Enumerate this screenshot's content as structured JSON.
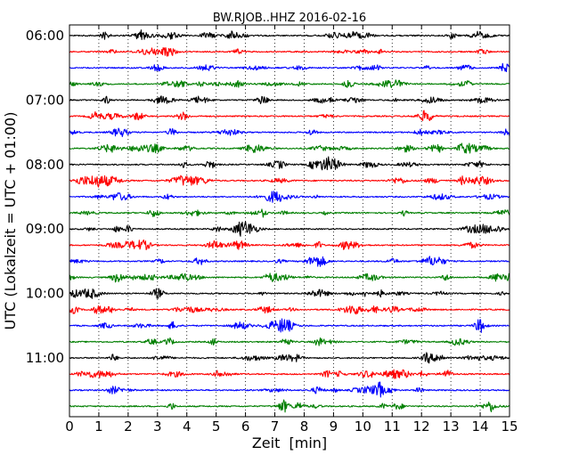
{
  "chart_data": {
    "type": "line",
    "title": "BW.RJOB..HHZ 2016-02-16",
    "xlabel": "Zeit  [min]",
    "ylabel": "UTC (Lokalzeit = UTC + 01:00)",
    "xlim": [
      0,
      15
    ],
    "x_ticks": [
      0,
      1,
      2,
      3,
      4,
      5,
      6,
      7,
      8,
      9,
      10,
      11,
      12,
      13,
      14,
      15
    ],
    "x_tick_labels": [
      "0",
      "1",
      "2",
      "3",
      "4",
      "5",
      "6",
      "7",
      "8",
      "9",
      "10",
      "11",
      "12",
      "13",
      "14",
      "15"
    ],
    "minutes_per_trace": 15,
    "trace_start_times": [
      "06:00",
      "06:15",
      "06:30",
      "06:45",
      "07:00",
      "07:15",
      "07:30",
      "07:45",
      "08:00",
      "08:15",
      "08:30",
      "08:45",
      "09:00",
      "09:15",
      "09:30",
      "09:45",
      "10:00",
      "10:15",
      "10:30",
      "10:45",
      "11:00",
      "11:15",
      "11:30",
      "11:45"
    ],
    "y_tick_labels": [
      {
        "label": "06:00",
        "trace_index": 0
      },
      {
        "label": "07:00",
        "trace_index": 4
      },
      {
        "label": "08:00",
        "trace_index": 8
      },
      {
        "label": "09:00",
        "trace_index": 12
      },
      {
        "label": "10:00",
        "trace_index": 16
      },
      {
        "label": "11:00",
        "trace_index": 20
      }
    ],
    "trace_colors": [
      "#000000",
      "#ff0000",
      "#0000ff",
      "#007f00"
    ],
    "vertical_grid": "dotted",
    "legend": "none"
  }
}
